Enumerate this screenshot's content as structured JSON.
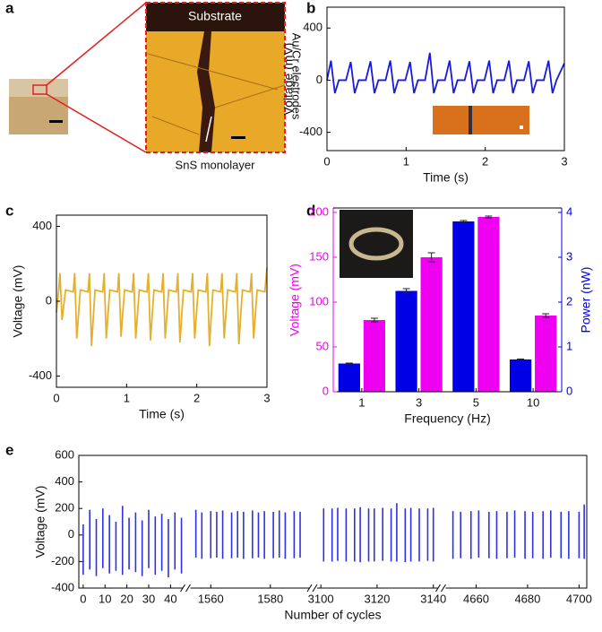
{
  "panel_labels": [
    "a",
    "b",
    "c",
    "d",
    "e"
  ],
  "micrograph": {
    "substrate": "Substrate",
    "electrodes": "Au/Cr electrodes",
    "monolayer": "SnS monolayer"
  },
  "chart_data": [
    {
      "type": "line",
      "xlabel": "Time (s)",
      "ylabel": "Voltage (mV)",
      "color": "#1a1adb",
      "xlim": [
        0,
        3
      ],
      "xticks": [
        0,
        1,
        2,
        3
      ],
      "ylim": [
        -540,
        560
      ],
      "yticks": [
        -400,
        0,
        400
      ],
      "x": [
        0.0,
        0.05,
        0.1,
        0.15,
        0.24,
        0.3,
        0.35,
        0.4,
        0.49,
        0.55,
        0.6,
        0.65,
        0.74,
        0.8,
        0.85,
        0.9,
        0.99,
        1.05,
        1.1,
        1.15,
        1.24,
        1.3,
        1.35,
        1.4,
        1.49,
        1.55,
        1.6,
        1.65,
        1.74,
        1.8,
        1.85,
        1.9,
        1.99,
        2.05,
        2.1,
        2.15,
        2.24,
        2.3,
        2.35,
        2.4,
        2.49,
        2.55,
        2.6,
        2.65,
        2.74,
        2.8,
        2.85,
        2.9,
        3.0
      ],
      "values": [
        0,
        150,
        -100,
        0,
        0,
        140,
        -100,
        0,
        0,
        145,
        -100,
        0,
        0,
        150,
        -100,
        0,
        0,
        140,
        -100,
        0,
        0,
        210,
        -100,
        0,
        0,
        150,
        -100,
        0,
        0,
        145,
        -100,
        0,
        0,
        150,
        -100,
        0,
        0,
        150,
        -100,
        0,
        0,
        145,
        -100,
        0,
        0,
        150,
        -100,
        0,
        130
      ]
    },
    {
      "type": "line",
      "xlabel": "Time (s)",
      "ylabel": "Voltage (mV)",
      "color": "#e3b02f",
      "xlim": [
        0,
        3
      ],
      "xticks": [
        0,
        1,
        2,
        3
      ],
      "ylim": [
        -460,
        460
      ],
      "yticks": [
        -400,
        0,
        400
      ],
      "x": [
        0.0,
        0.03,
        0.05,
        0.08,
        0.13,
        0.24,
        0.26,
        0.29,
        0.34,
        0.45,
        0.47,
        0.5,
        0.55,
        0.66,
        0.68,
        0.71,
        0.76,
        0.87,
        0.89,
        0.92,
        0.97,
        1.08,
        1.1,
        1.13,
        1.18,
        1.29,
        1.31,
        1.34,
        1.39,
        1.5,
        1.52,
        1.55,
        1.6,
        1.71,
        1.73,
        1.76,
        1.81,
        1.92,
        1.94,
        1.97,
        2.02,
        2.13,
        2.15,
        2.18,
        2.23,
        2.34,
        2.36,
        2.39,
        2.44,
        2.55,
        2.57,
        2.6,
        2.65,
        2.76,
        2.78,
        2.81,
        2.86,
        2.97,
        3.0
      ],
      "values": [
        -60,
        50,
        150,
        -100,
        60,
        50,
        150,
        -200,
        60,
        50,
        150,
        -240,
        60,
        50,
        150,
        -200,
        60,
        50,
        150,
        -190,
        60,
        50,
        150,
        -200,
        60,
        50,
        150,
        -210,
        60,
        50,
        150,
        -200,
        60,
        50,
        150,
        -220,
        60,
        50,
        150,
        -200,
        60,
        50,
        150,
        -240,
        60,
        50,
        150,
        -200,
        60,
        50,
        150,
        -230,
        60,
        50,
        150,
        -200,
        60,
        50,
        180
      ]
    },
    {
      "type": "bar",
      "xlabel": "Frequency (Hz)",
      "ylabel": "Voltage (mV)",
      "y2label": "Power (nW)",
      "categories": [
        "1",
        "3",
        "5",
        "10"
      ],
      "ylim": [
        0,
        205
      ],
      "yticks": [
        0,
        50,
        100,
        150,
        200
      ],
      "y2lim": [
        0,
        4.1
      ],
      "y2ticks": [
        0,
        1,
        2,
        3,
        4
      ],
      "series": [
        {
          "color": "#0000e6",
          "axis": "y2",
          "values": [
            0.63,
            2.25,
            3.8,
            0.72
          ],
          "errors": [
            0.01,
            0.05,
            0.02,
            0.01
          ]
        },
        {
          "color": "#f000f0",
          "values": [
            80,
            150,
            195,
            85
          ],
          "errors": [
            2,
            5,
            1,
            2
          ]
        }
      ]
    },
    {
      "type": "spike",
      "xlabel": "Number of cycles",
      "ylabel": "Voltage (mV)",
      "color": "#3030e0",
      "ylim": [
        -400,
        600
      ],
      "yticks": [
        -400,
        -200,
        0,
        200,
        400,
        600
      ],
      "segments": [
        {
          "xlim": [
            -2,
            46
          ],
          "xticks": [
            0,
            10,
            20,
            30,
            40
          ],
          "x": [
            0,
            3,
            6,
            9,
            12,
            15,
            18,
            21,
            24,
            27,
            30,
            33,
            36,
            39,
            42,
            45
          ],
          "high": [
            80,
            190,
            120,
            200,
            150,
            100,
            220,
            130,
            170,
            110,
            190,
            140,
            160,
            120,
            170,
            130
          ],
          "low": [
            -300,
            -260,
            -310,
            -250,
            -290,
            -270,
            -300,
            -260,
            -280,
            -310,
            -250,
            -300,
            -270,
            -320,
            -260,
            -290
          ]
        },
        {
          "xlim": [
            1553,
            1593
          ],
          "xticks": [
            1560,
            1580
          ],
          "x": [
            1555,
            1557,
            1560,
            1562,
            1564,
            1567,
            1569,
            1571,
            1574,
            1576,
            1578,
            1581,
            1583,
            1585,
            1588,
            1590
          ],
          "high": [
            190,
            170,
            180,
            175,
            185,
            170,
            180,
            175,
            185,
            170,
            180,
            175,
            185,
            170,
            180,
            175
          ],
          "low": [
            -170,
            -180,
            -175,
            -170,
            -180,
            -175,
            -170,
            -180,
            -175,
            -170,
            -180,
            -175,
            -170,
            -180,
            -175,
            -170
          ]
        },
        {
          "xlim": [
            3099,
            3142
          ],
          "xticks": [
            3100,
            3120,
            3140
          ],
          "x": [
            3101,
            3104,
            3106,
            3109,
            3112,
            3114,
            3117,
            3119,
            3122,
            3125,
            3127,
            3130,
            3132,
            3135,
            3138,
            3140
          ],
          "high": [
            200,
            200,
            205,
            200,
            200,
            210,
            200,
            200,
            205,
            200,
            240,
            200,
            205,
            200,
            200,
            205
          ],
          "low": [
            -200,
            -200,
            -195,
            -200,
            -200,
            -205,
            -200,
            -200,
            -195,
            -200,
            -200,
            -205,
            -200,
            -200,
            -195,
            -200
          ]
        },
        {
          "xlim": [
            4648,
            4703
          ],
          "xticks": [
            4660,
            4680,
            4700
          ],
          "x": [
            4651,
            4654,
            4658,
            4661,
            4665,
            4668,
            4672,
            4675,
            4679,
            4682,
            4686,
            4689,
            4693,
            4696,
            4700,
            4702
          ],
          "high": [
            180,
            175,
            180,
            185,
            175,
            180,
            175,
            185,
            180,
            175,
            180,
            185,
            175,
            180,
            175,
            230
          ],
          "low": [
            -180,
            -175,
            -180,
            -170,
            -175,
            -180,
            -175,
            -170,
            -180,
            -175,
            -180,
            -170,
            -175,
            -180,
            -175,
            -180
          ]
        }
      ]
    }
  ]
}
